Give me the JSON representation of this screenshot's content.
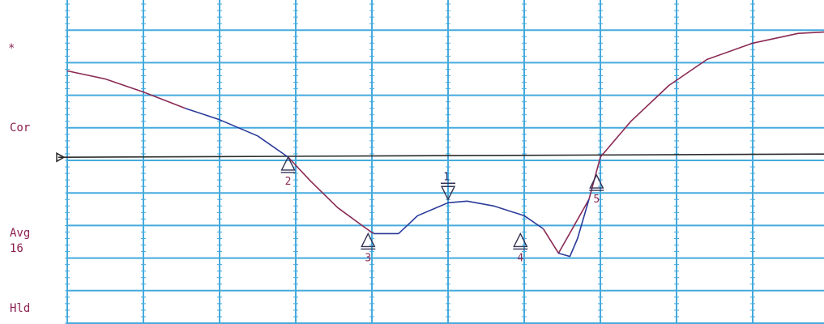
{
  "side_labels": {
    "star": "*",
    "cor": "Cor",
    "avg": "Avg",
    "avg_count": "16",
    "hld": "Hld"
  },
  "colors": {
    "grid": "#45aadd",
    "background": "#ffffff",
    "trace_red": "#8a2a55",
    "trace_blue": "#2a3a9a",
    "reference": "#2a2a2a",
    "label": "#8a2050"
  },
  "chart_data": {
    "type": "line",
    "title": "",
    "xlabel": "",
    "ylabel": "",
    "xlim": [
      0,
      10
    ],
    "ylim": [
      0,
      10
    ],
    "grid": true,
    "x_divisions": 10,
    "y_divisions": 10,
    "reference_level": 5.12,
    "series": [
      {
        "color": "#8a2a55",
        "segments": [
          {
            "x": [
              0,
              0.5,
              1.0,
              1.55
            ],
            "y": [
              7.75,
              7.5,
              7.1,
              6.6
            ]
          },
          {
            "x": [
              2.9,
              3.2,
              3.55,
              3.9,
              4.02
            ],
            "y": [
              5.1,
              4.35,
              3.55,
              2.95,
              2.75
            ]
          },
          {
            "x": [
              6.25,
              6.45,
              6.85,
              7.0
            ],
            "y": [
              2.9,
              2.15,
              3.8,
              5.1
            ]
          },
          {
            "x": [
              7.0,
              7.4,
              7.9,
              8.4,
              9.0,
              9.6,
              10.0
            ],
            "y": [
              5.1,
              6.2,
              7.3,
              8.1,
              8.6,
              8.9,
              8.95
            ]
          }
        ]
      },
      {
        "color": "#2a3a9a",
        "segments": [
          {
            "x": [
              1.55,
              2.0,
              2.5,
              2.9
            ],
            "y": [
              6.6,
              6.25,
              5.75,
              5.1
            ]
          },
          {
            "x": [
              4.02,
              4.35,
              4.6,
              5.0,
              5.25,
              5.6,
              6.0,
              6.25
            ],
            "y": [
              2.75,
              2.75,
              3.3,
              3.7,
              3.75,
              3.6,
              3.3,
              2.9
            ]
          },
          {
            "x": [
              6.45,
              6.6,
              6.7,
              6.85
            ],
            "y": [
              2.15,
              2.05,
              2.6,
              3.8
            ]
          }
        ]
      }
    ],
    "markers": [
      {
        "label": "1",
        "x": 5.0,
        "y": 3.75,
        "direction": "down"
      },
      {
        "label": "2",
        "x": 2.9,
        "y": 5.1,
        "direction": "up"
      },
      {
        "label": "3",
        "x": 3.95,
        "y": 2.75,
        "direction": "up"
      },
      {
        "label": "4",
        "x": 5.95,
        "y": 2.75,
        "direction": "up"
      },
      {
        "label": "5",
        "x": 6.95,
        "y": 4.55,
        "direction": "up"
      }
    ]
  }
}
